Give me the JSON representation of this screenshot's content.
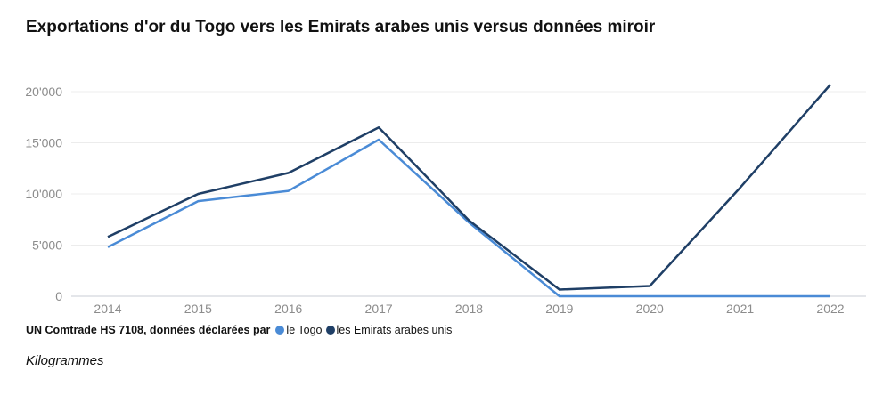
{
  "title": "Exportations d'or du Togo vers les Emirats arabes unis versus données miroir",
  "legend": {
    "prefix": "UN Comtrade HS 7108, données déclarées par",
    "items": [
      {
        "label": "le Togo",
        "color": "#4a8bd6"
      },
      {
        "label": "les Emirats arabes unis",
        "color": "#1f3f66"
      }
    ]
  },
  "unit_label": "Kilogrammes",
  "chart_data": {
    "type": "line",
    "x": [
      "2014",
      "2015",
      "2016",
      "2017",
      "2018",
      "2019",
      "2020",
      "2021",
      "2022"
    ],
    "ylim": [
      0,
      21000
    ],
    "yticks": [
      0,
      5000,
      10000,
      15000,
      20000
    ],
    "ytick_labels": [
      "0",
      "5'000",
      "10'000",
      "15'000",
      "20'000"
    ],
    "grid": true,
    "series": [
      {
        "name": "le Togo",
        "color": "#4a8bd6",
        "values": [
          4800,
          9300,
          10300,
          15300,
          7200,
          0,
          0,
          0,
          0
        ]
      },
      {
        "name": "les Emirats arabes unis",
        "color": "#1f3f66",
        "values": [
          5800,
          10000,
          12050,
          16500,
          7400,
          650,
          1000,
          10600,
          20700
        ]
      }
    ]
  }
}
